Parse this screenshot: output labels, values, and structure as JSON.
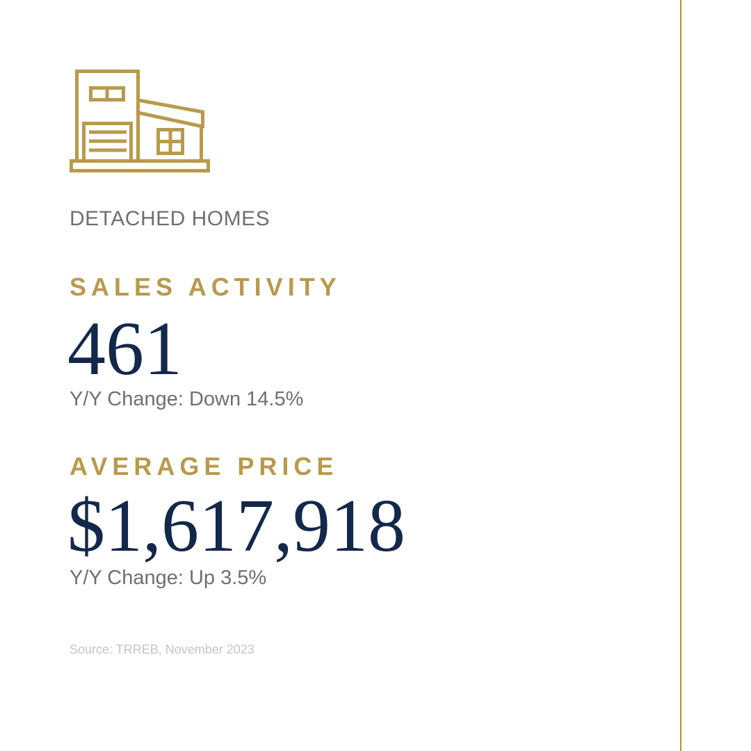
{
  "colors": {
    "gold": "#b99a4c",
    "navy": "#13284a",
    "gray_text": "#6d7073",
    "source_text": "#c4c4c4",
    "divider": "#a59a3f"
  },
  "icon": "detached-house-icon",
  "category": "DETACHED HOMES",
  "sales": {
    "label": "SALES ACTIVITY",
    "value": "461",
    "change": "Y/Y Change: Down 14.5%"
  },
  "price": {
    "label": "AVERAGE PRICE",
    "value": "$1,617,918",
    "change": "Y/Y Change: Up 3.5%"
  },
  "source": "Source: TRREB, November 2023"
}
